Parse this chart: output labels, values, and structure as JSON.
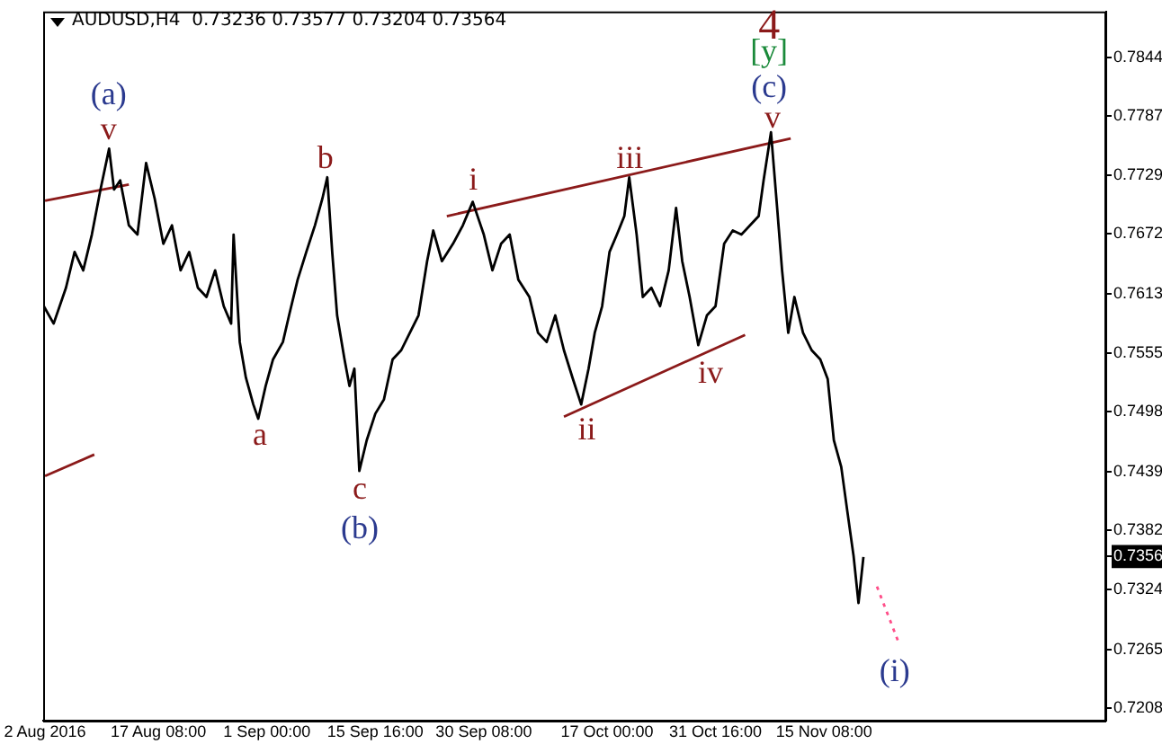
{
  "chart_data": {
    "type": "line",
    "title": "AUDUSD,H4  0.73236 0.73577 0.73204 0.73564",
    "marker": "none",
    "grid": false,
    "legend": false,
    "xlim": [
      "2016-08-01T18:00",
      "2016-12-23T12:00"
    ],
    "xticks": [
      {
        "value": "2016-08-02T00:00",
        "label": "2 Aug 2016"
      },
      {
        "value": "2016-08-17T08:00",
        "label": "17 Aug 08:00"
      },
      {
        "value": "2016-09-01T00:00",
        "label": "1 Sep 00:00"
      },
      {
        "value": "2016-09-15T16:00",
        "label": "15 Sep 16:00"
      },
      {
        "value": "2016-09-30T08:00",
        "label": "30 Sep 08:00"
      },
      {
        "value": "2016-10-17T00:00",
        "label": "17 Oct 00:00"
      },
      {
        "value": "2016-10-31T16:00",
        "label": "31 Oct 16:00"
      },
      {
        "value": "2016-11-15T08:00",
        "label": "15 Nov 08:00"
      }
    ],
    "ylim": [
      0.7196,
      0.7889
    ],
    "yticks": [
      0.7208,
      0.7265,
      0.7324,
      {
        "value": 0.73564,
        "label": "0.7356"
      },
      0.7382,
      0.7439,
      0.7498,
      0.7555,
      0.7613,
      0.7672,
      0.7729,
      0.7787,
      0.7844
    ],
    "series": [
      {
        "color": "#000000",
        "line_style": "solid",
        "x": [
          "2016-08-01T20:00",
          "2016-08-03T04:00",
          "2016-08-04T20:00",
          "2016-08-06T00:00",
          "2016-08-07T04:00",
          "2016-08-08T08:00",
          "2016-08-09T12:00",
          "2016-08-10T16:00",
          "2016-08-11T08:00",
          "2016-08-12T04:00",
          "2016-08-13T08:00",
          "2016-08-14T12:00",
          "2016-08-15T16:00",
          "2016-08-16T20:00",
          "2016-08-18T00:00",
          "2016-08-19T04:00",
          "2016-08-20T08:00",
          "2016-08-21T12:00",
          "2016-08-22T16:00",
          "2016-08-23T20:00",
          "2016-08-25T00:00",
          "2016-08-26T04:00",
          "2016-08-27T04:00",
          "2016-08-27T12:00",
          "2016-08-28T08:00",
          "2016-08-29T04:00",
          "2016-08-30T04:00",
          "2016-08-30T20:00",
          "2016-08-31T20:00",
          "2016-09-01T20:00",
          "2016-09-03T04:00",
          "2016-09-04T00:00",
          "2016-09-05T04:00",
          "2016-09-06T08:00",
          "2016-09-07T12:00",
          "2016-09-08T12:00",
          "2016-09-09T04:00",
          "2016-09-09T20:00",
          "2016-09-10T12:00",
          "2016-09-11T12:00",
          "2016-09-12T04:00",
          "2016-09-12T20:00",
          "2016-09-13T12:00",
          "2016-09-14T12:00",
          "2016-09-15T16:00",
          "2016-09-16T20:00",
          "2016-09-18T00:00",
          "2016-09-19T04:00",
          "2016-09-20T08:00",
          "2016-09-21T12:00",
          "2016-09-22T16:00",
          "2016-09-23T12:00",
          "2016-09-24T16:00",
          "2016-09-26T04:00",
          "2016-09-27T12:00",
          "2016-09-28T20:00",
          "2016-09-30T08:00",
          "2016-10-01T12:00",
          "2016-10-02T16:00",
          "2016-10-03T20:00",
          "2016-10-05T00:00",
          "2016-10-06T12:00",
          "2016-10-07T16:00",
          "2016-10-08T20:00",
          "2016-10-10T00:00",
          "2016-10-11T04:00",
          "2016-10-12T08:00",
          "2016-10-13T12:00",
          "2016-10-14T12:00",
          "2016-10-15T08:00",
          "2016-10-16T08:00",
          "2016-10-17T08:00",
          "2016-10-18T08:00",
          "2016-10-19T08:00",
          "2016-10-20T00:00",
          "2016-10-21T00:00",
          "2016-10-21T20:00",
          "2016-10-23T00:00",
          "2016-10-24T04:00",
          "2016-10-25T08:00",
          "2016-10-26T08:00",
          "2016-10-27T04:00",
          "2016-10-28T04:00",
          "2016-10-29T08:00",
          "2016-10-30T12:00",
          "2016-10-31T16:00",
          "2016-11-01T20:00",
          "2016-11-03T00:00",
          "2016-11-04T04:00",
          "2016-11-05T08:00",
          "2016-11-06T12:00",
          "2016-11-07T04:00",
          "2016-11-08T04:00",
          "2016-11-09T00:00",
          "2016-11-09T16:00",
          "2016-11-10T12:00",
          "2016-11-11T08:00",
          "2016-11-12T12:00",
          "2016-11-13T16:00",
          "2016-11-14T20:00",
          "2016-11-15T20:00",
          "2016-11-16T16:00",
          "2016-11-17T16:00",
          "2016-11-18T12:00",
          "2016-11-19T08:00",
          "2016-11-20T00:00",
          "2016-11-20T16:00"
        ],
        "values": [
          0.7601,
          0.7584,
          0.7619,
          0.7654,
          0.7636,
          0.7671,
          0.7715,
          0.7755,
          0.7715,
          0.7724,
          0.768,
          0.7671,
          0.7741,
          0.7706,
          0.7662,
          0.768,
          0.7636,
          0.7654,
          0.7619,
          0.761,
          0.7636,
          0.7601,
          0.7584,
          0.7671,
          0.7566,
          0.7531,
          0.7505,
          0.7491,
          0.7523,
          0.7549,
          0.7566,
          0.7592,
          0.7627,
          0.7654,
          0.768,
          0.7706,
          0.7727,
          0.7654,
          0.7592,
          0.7549,
          0.7523,
          0.754,
          0.744,
          0.747,
          0.7496,
          0.751,
          0.7549,
          0.7558,
          0.7575,
          0.7592,
          0.7645,
          0.7675,
          0.7645,
          0.7662,
          0.768,
          0.7703,
          0.7671,
          0.7636,
          0.7662,
          0.7671,
          0.7627,
          0.761,
          0.7575,
          0.7566,
          0.7592,
          0.7558,
          0.7531,
          0.7505,
          0.754,
          0.7575,
          0.7601,
          0.7654,
          0.7671,
          0.7689,
          0.7727,
          0.7671,
          0.761,
          0.7619,
          0.7601,
          0.7636,
          0.7697,
          0.7645,
          0.761,
          0.7563,
          0.7592,
          0.7601,
          0.7662,
          0.7675,
          0.7671,
          0.768,
          0.7689,
          0.7724,
          0.7771,
          0.7697,
          0.7636,
          0.7575,
          0.761,
          0.7575,
          0.7558,
          0.7549,
          0.753,
          0.747,
          0.7444,
          0.74,
          0.7357,
          0.7311,
          0.7356
        ]
      },
      {
        "color": "#8b1a1a",
        "line_style": "solid",
        "x": [
          "2016-08-02T00:00",
          "2016-08-13T08:00"
        ],
        "values": [
          0.7704,
          0.772
        ]
      },
      {
        "color": "#8b1a1a",
        "line_style": "solid",
        "x": [
          "2016-08-02T00:00",
          "2016-08-08T16:00"
        ],
        "values": [
          0.7435,
          0.7456
        ]
      },
      {
        "color": "#8b1a1a",
        "line_style": "solid",
        "x": [
          "2016-09-25T08:00",
          "2016-11-10T20:00"
        ],
        "values": [
          0.7689,
          0.7765
        ]
      },
      {
        "color": "#8b1a1a",
        "line_style": "solid",
        "x": [
          "2016-10-11T04:00",
          "2016-11-04T16:00"
        ],
        "values": [
          0.7493,
          0.7573
        ]
      },
      {
        "color": "#ff4d88",
        "line_style": "dotted",
        "x": [
          "2016-11-22T12:00",
          "2016-11-25T12:00"
        ],
        "values": [
          0.7327,
          0.7271
        ]
      }
    ],
    "annotations": [
      "(a)",
      "v",
      "b",
      "a",
      "c",
      "(b)",
      "i",
      "iii",
      "ii",
      "iv",
      "v",
      "(c)",
      "[y]",
      "4",
      "(i)"
    ]
  }
}
